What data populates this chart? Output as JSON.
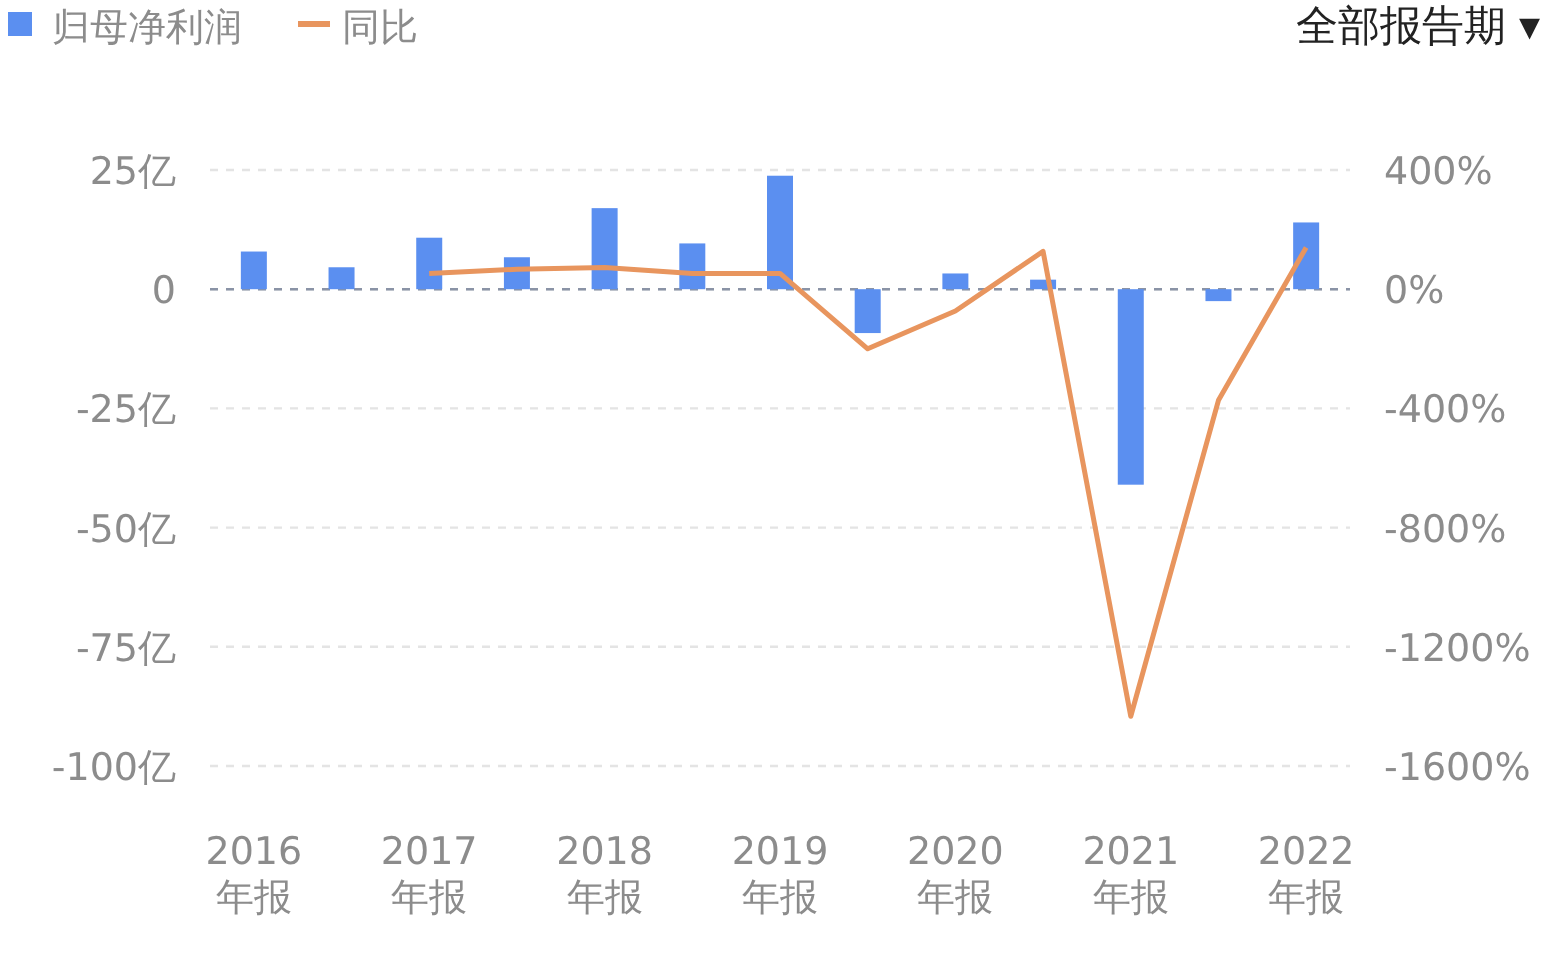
{
  "chart_data": {
    "type": "bar",
    "categories": [
      "2016\n年报",
      null,
      "2017\n年报",
      null,
      "2018\n年报",
      null,
      "2019\n年报",
      null,
      "2020\n年报",
      null,
      "2021\n年报",
      null,
      "2022\n年报"
    ],
    "series": [
      {
        "name": "归母净利润",
        "color": "#5b8ff0",
        "values": [
          7.9,
          4.6,
          10.8,
          6.7,
          17,
          9.6,
          23.8,
          -9.2,
          3.3,
          2,
          -41,
          -2.5,
          14
        ]
      },
      {
        "name": "同比",
        "type": "line",
        "axis": "y2",
        "color": "#e8955e",
        "marker": "none",
        "values": [
          null,
          null,
          53,
          67,
          73,
          53,
          53,
          -200,
          -73,
          127,
          -1433,
          -373,
          140
        ]
      }
    ],
    "ylim": [
      -100,
      25
    ],
    "yticks": [
      {
        "value": 25,
        "label": "25亿"
      },
      0,
      {
        "value": -25,
        "label": "-25亿"
      },
      {
        "value": -50,
        "label": "-50亿"
      },
      {
        "value": -75,
        "label": "-75亿"
      },
      {
        "value": -100,
        "label": "-100亿"
      }
    ],
    "y2lim": [
      -1600,
      400
    ],
    "y2ticks": [
      {
        "value": 400,
        "label": "400%"
      },
      {
        "value": 0,
        "label": "0%"
      },
      {
        "value": -400,
        "label": "-400%"
      },
      {
        "value": -800,
        "label": "-800%"
      },
      {
        "value": -1200,
        "label": "-1200%"
      },
      {
        "value": -1600,
        "label": "-1600%"
      }
    ],
    "grid": "y",
    "ref_lines": [
      {
        "axis": "y",
        "value": 0,
        "color": "#8a93a6",
        "line_style": "dashed"
      }
    ],
    "legend": "top left",
    "annotations": [
      "全部报告期 ▾"
    ]
  }
}
